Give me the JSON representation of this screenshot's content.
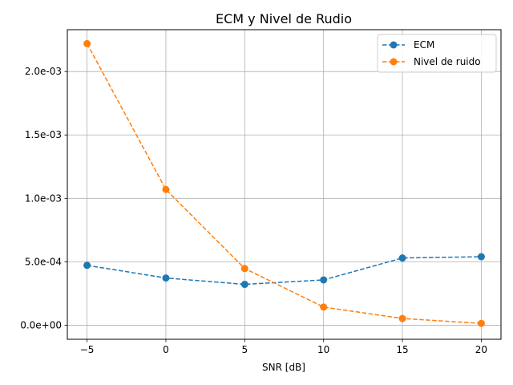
{
  "chart_data": {
    "type": "line",
    "title": "ECM y Nivel de Rudio",
    "xlabel": "SNR [dB]",
    "ylabel": "",
    "x": [
      -5,
      0,
      5,
      10,
      15,
      20
    ],
    "xticks": [
      -5,
      0,
      5,
      10,
      15,
      20
    ],
    "xtick_labels": [
      "−5",
      "0",
      "5",
      "10",
      "15",
      "20"
    ],
    "xlim": [
      -6.25,
      21.25
    ],
    "yticks": [
      0,
      0.0005,
      0.001,
      0.0015,
      0.002
    ],
    "ytick_labels": [
      "0.0e+00",
      "5.0e-04",
      "1.0e-03",
      "1.5e-03",
      "2.0e-03"
    ],
    "ylim": [
      -0.000111,
      0.00233
    ],
    "grid": true,
    "legend_position": "upper right",
    "series": [
      {
        "name": "ECM",
        "color": "#1f77b4",
        "linestyle": "dashed",
        "marker": "circle",
        "values": [
          0.000472,
          0.000372,
          0.000322,
          0.000357,
          0.00053,
          0.00054
        ]
      },
      {
        "name": "Nivel de ruido",
        "color": "#ff7f0e",
        "linestyle": "dashed",
        "marker": "circle",
        "values": [
          0.00222,
          0.00107,
          0.000447,
          0.000143,
          5.3e-05,
          1.4e-05
        ]
      }
    ]
  }
}
